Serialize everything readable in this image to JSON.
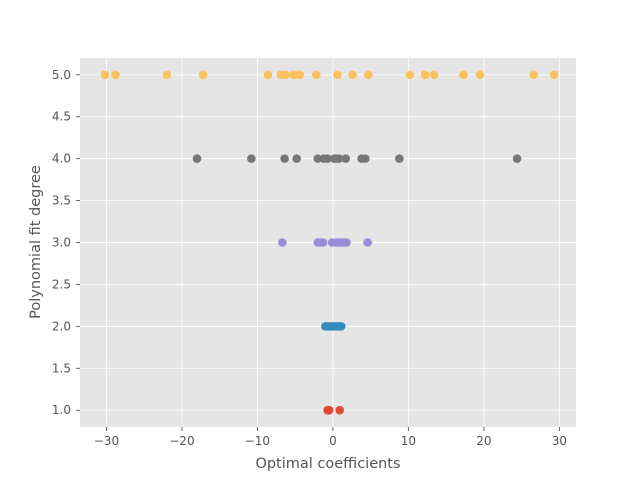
{
  "colors": {
    "background": "#ffffff",
    "plot_background": "#e5e5e5",
    "grid": "#ffffff",
    "tick_text": "#555555"
  },
  "chart_data": {
    "type": "scatter",
    "title": "",
    "xlabel": "Optimal coefficients",
    "ylabel": "Polynomial fit degree",
    "xlim": [
      -33.5,
      32.2
    ],
    "ylim": [
      0.8,
      5.2
    ],
    "xticks": [
      -30,
      -20,
      -10,
      0,
      10,
      20,
      30
    ],
    "xtick_labels": [
      "−30",
      "−20",
      "−10",
      "0",
      "10",
      "20",
      "30"
    ],
    "yticks": [
      1.0,
      1.5,
      2.0,
      2.5,
      3.0,
      3.5,
      4.0,
      4.5,
      5.0
    ],
    "ytick_labels": [
      "1.0",
      "1.5",
      "2.0",
      "2.5",
      "3.0",
      "3.5",
      "4.0",
      "4.5",
      "5.0"
    ],
    "grid": true,
    "legend": "none",
    "series": [
      {
        "color": "#E24A33",
        "y": 1.0,
        "x": [
          -0.7,
          -0.5,
          0.9
        ]
      },
      {
        "color": "#348ABD",
        "y": 2.0,
        "x": [
          -1.0,
          -0.7,
          -0.4,
          -0.1,
          0.1,
          0.4,
          0.7,
          0.9,
          1.1
        ]
      },
      {
        "color": "#988ED5",
        "y": 3.0,
        "x": [
          -6.7,
          -2.0,
          -1.7,
          -1.3,
          -0.1,
          0.5,
          0.8,
          1.1,
          1.4,
          1.8,
          4.6
        ]
      },
      {
        "color": "#777777",
        "y": 4.0,
        "x": [
          -18.0,
          -10.8,
          -6.4,
          -4.8,
          -2.0,
          -1.2,
          -0.7,
          0.2,
          0.5,
          0.8,
          1.7,
          3.8,
          4.3,
          8.8,
          24.4
        ]
      },
      {
        "color": "#FBC15E",
        "y": 5.0,
        "x": [
          -30.2,
          -28.8,
          -22.0,
          -17.2,
          -8.6,
          -6.9,
          -6.3,
          -5.2,
          -4.4,
          -2.2,
          0.6,
          2.6,
          4.7,
          10.2,
          12.2,
          13.4,
          17.3,
          19.5,
          26.6,
          29.3
        ]
      }
    ]
  }
}
